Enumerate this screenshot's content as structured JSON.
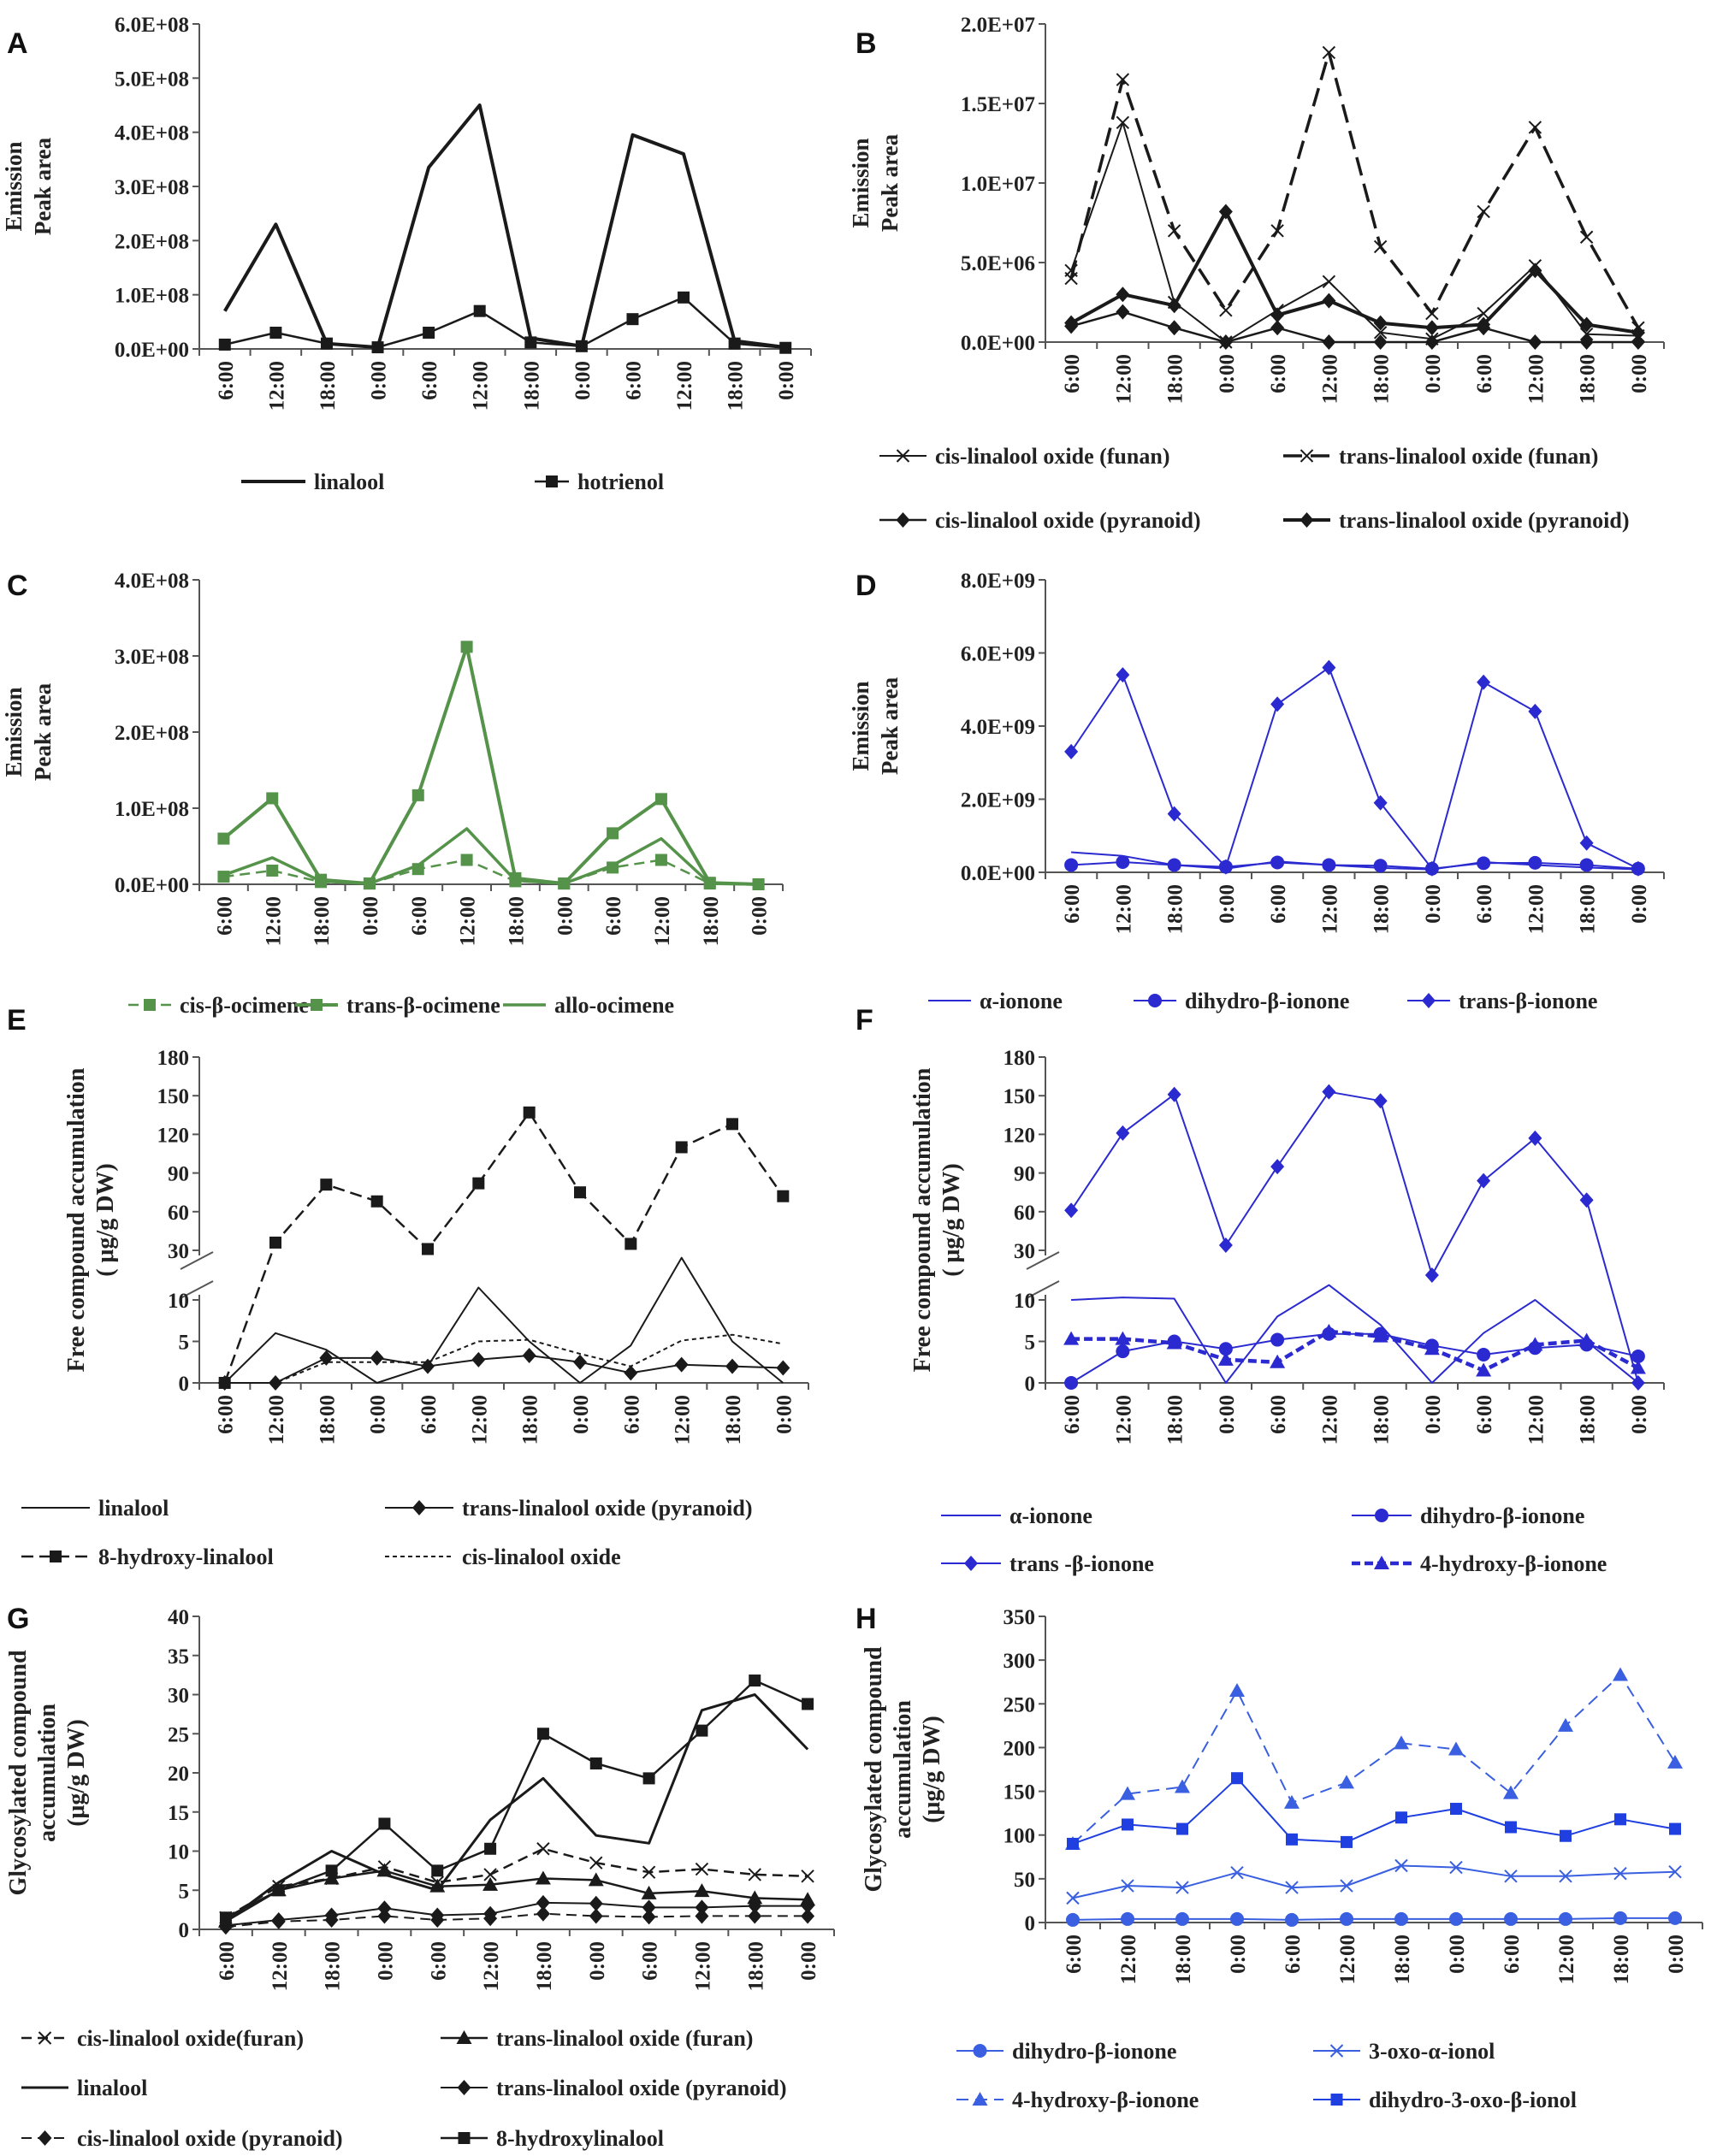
{
  "panels": {
    "A": {
      "label": "A",
      "ylabel": [
        "Emission",
        "Peak area"
      ]
    },
    "B": {
      "label": "B",
      "ylabel": [
        "Emission",
        "Peak area"
      ]
    },
    "C": {
      "label": "C",
      "ylabel": [
        "Emission",
        "Peak area"
      ]
    },
    "D": {
      "label": "D",
      "ylabel": [
        "Emission",
        "Peak area"
      ]
    },
    "E": {
      "label": "E",
      "ylabel": [
        "Free compound accumulation",
        "( μg/g DW)"
      ]
    },
    "F": {
      "label": "F",
      "ylabel": [
        "Free compound accumulation",
        "( μg/g DW)"
      ]
    },
    "G": {
      "label": "G",
      "ylabel": [
        "Glycosylated compound",
        "accumulation",
        "(μg/g DW)"
      ]
    },
    "H": {
      "label": "H",
      "ylabel": [
        "Glycosylated compound",
        "accumulation",
        "(μg/g DW)"
      ]
    }
  },
  "chart_data": [
    {
      "id": "A",
      "type": "line",
      "categories": [
        "6:00",
        "12:00",
        "18:00",
        "0:00",
        "6:00",
        "12:00",
        "18:00",
        "0:00",
        "6:00",
        "12:00",
        "18:00",
        "0:00"
      ],
      "yticks": [
        "0.0E+00",
        "1.0E+08",
        "2.0E+08",
        "3.0E+08",
        "4.0E+08",
        "5.0E+08",
        "6.0E+08"
      ],
      "ylim": [
        0,
        600000000
      ],
      "series": [
        {
          "name": "linalool",
          "color": "#1a1a1a",
          "values": [
            70000000,
            230000000,
            10000000,
            3000000,
            335000000,
            450000000,
            20000000,
            5000000,
            395000000,
            360000000,
            15000000,
            3000000
          ]
        },
        {
          "name": "hotrienol",
          "color": "#1a1a1a",
          "values": [
            8000000,
            30000000,
            10000000,
            3000000,
            30000000,
            70000000,
            12000000,
            5000000,
            55000000,
            95000000,
            10000000,
            2000000
          ]
        }
      ]
    },
    {
      "id": "B",
      "type": "line",
      "categories": [
        "6:00",
        "12:00",
        "18:00",
        "0:00",
        "6:00",
        "12:00",
        "18:00",
        "0:00",
        "6:00",
        "12:00",
        "18:00",
        "0:00"
      ],
      "yticks": [
        "0.0E+00",
        "5.0E+06",
        "1.0E+07",
        "1.5E+07",
        "2.0E+07"
      ],
      "ylim": [
        0,
        20000000
      ],
      "series": [
        {
          "name": "cis-linalool oxide (funan)",
          "color": "#1a1a1a",
          "values": [
            4500000,
            13800000,
            2500000,
            0,
            2000000,
            3800000,
            600000,
            200000,
            1800000,
            4800000,
            500000,
            400000
          ]
        },
        {
          "name": "trans-linalool oxide (funan)",
          "color": "#1a1a1a",
          "values": [
            4000000,
            16500000,
            7000000,
            2000000,
            7000000,
            18200000,
            6000000,
            1800000,
            8200000,
            13500000,
            6600000,
            900000
          ]
        },
        {
          "name": "cis-linalool oxide (pyranoid)",
          "color": "#1a1a1a",
          "values": [
            1000000,
            1900000,
            900000,
            0,
            900000,
            0,
            0,
            0,
            900000,
            0,
            0,
            0
          ]
        },
        {
          "name": "trans-linalool oxide (pyranoid)",
          "color": "#1a1a1a",
          "values": [
            1200000,
            3000000,
            2300000,
            8200000,
            1700000,
            2600000,
            1200000,
            900000,
            1100000,
            4500000,
            1100000,
            600000
          ]
        }
      ]
    },
    {
      "id": "C",
      "type": "line",
      "categories": [
        "6:00",
        "12:00",
        "18:00",
        "0:00",
        "6:00",
        "12:00",
        "18:00",
        "0:00",
        "6:00",
        "12:00",
        "18:00",
        "0:00"
      ],
      "yticks": [
        "0.0E+00",
        "1.0E+08",
        "2.0E+08",
        "3.0E+08",
        "4.0E+08"
      ],
      "ylim": [
        0,
        400000000
      ],
      "series": [
        {
          "name": "cis-β-ocimene",
          "color": "#55924a",
          "values": [
            10000000,
            18000000,
            3000000,
            1000000,
            20000000,
            32000000,
            4000000,
            1000000,
            22000000,
            32000000,
            1000000,
            0
          ]
        },
        {
          "name": "trans-β-ocimene",
          "color": "#55924a",
          "values": [
            60000000,
            113000000,
            6000000,
            1000000,
            117000000,
            312000000,
            8000000,
            1000000,
            67000000,
            112000000,
            2000000,
            0
          ]
        },
        {
          "name": "allo-ocimene",
          "color": "#55924a",
          "values": [
            12000000,
            35000000,
            4000000,
            1000000,
            25000000,
            73000000,
            5000000,
            1000000,
            25000000,
            60000000,
            1000000,
            0
          ]
        }
      ]
    },
    {
      "id": "D",
      "type": "line",
      "categories": [
        "6:00",
        "12:00",
        "18:00",
        "0:00",
        "6:00",
        "12:00",
        "18:00",
        "0:00",
        "6:00",
        "12:00",
        "18:00",
        "0:00"
      ],
      "yticks": [
        "0.0E+00",
        "2.0E+09",
        "4.0E+09",
        "6.0E+09",
        "8.0E+09"
      ],
      "ylim": [
        0,
        8000000000
      ],
      "series": [
        {
          "name": "α-ionone",
          "color": "#2a2ad0",
          "values": [
            550000000,
            450000000,
            200000000,
            100000000,
            300000000,
            200000000,
            120000000,
            80000000,
            280000000,
            200000000,
            130000000,
            80000000
          ]
        },
        {
          "name": "dihydro-β-ionone",
          "color": "#2a2ad0",
          "values": [
            200000000,
            280000000,
            200000000,
            150000000,
            270000000,
            200000000,
            180000000,
            100000000,
            250000000,
            260000000,
            200000000,
            100000000
          ]
        },
        {
          "name": "trans-β-ionone",
          "color": "#2a2ad0",
          "values": [
            3300000000,
            5400000000,
            1600000000,
            150000000,
            4600000000,
            5600000000,
            1900000000,
            100000000,
            5200000000,
            4400000000,
            800000000,
            100000000
          ]
        }
      ]
    },
    {
      "id": "E",
      "type": "line",
      "categories": [
        "6:00",
        "12:00",
        "18:00",
        "0:00",
        "6:00",
        "12:00",
        "18:00",
        "0:00",
        "6:00",
        "12:00",
        "18:00",
        "0:00"
      ],
      "yticks_lower": [
        "0",
        "5",
        "10"
      ],
      "yticks_upper": [
        "30",
        "60",
        "90",
        "120",
        "150",
        "180"
      ],
      "series": [
        {
          "name": "linalool",
          "color": "#1a1a1a",
          "values": [
            0,
            6,
            4,
            0,
            2,
            15,
            5,
            0,
            4.5,
            27,
            5,
            0
          ]
        },
        {
          "name": "trans-linalool oxide (pyranoid)",
          "color": "#1a1a1a",
          "values": [
            0,
            0,
            3,
            3,
            2,
            2.8,
            3.3,
            2.5,
            1.2,
            2.2,
            2,
            1.8
          ]
        },
        {
          "name": "8-hydroxy-linalool",
          "color": "#1a1a1a",
          "values": [
            0,
            36,
            81,
            68,
            31,
            82,
            137,
            75,
            35,
            110,
            128,
            72
          ]
        },
        {
          "name": "cis-linalool oxide",
          "color": "#1a1a1a",
          "values": [
            0,
            0,
            2.5,
            2.5,
            2.5,
            5,
            5.2,
            3.5,
            2,
            5.1,
            5.8,
            4.7
          ]
        }
      ]
    },
    {
      "id": "F",
      "type": "line",
      "categories": [
        "6:00",
        "12:00",
        "18:00",
        "0:00",
        "6:00",
        "12:00",
        "18:00",
        "0:00",
        "6:00",
        "12:00",
        "18:00",
        "0:00"
      ],
      "yticks_lower": [
        "0",
        "5",
        "10"
      ],
      "yticks_upper": [
        "30",
        "60",
        "90",
        "120",
        "150",
        "180"
      ],
      "series": [
        {
          "name": "α-ionone",
          "color": "#2a2ad0",
          "values": [
            10,
            11,
            10.5,
            0,
            8,
            16,
            7,
            0,
            6,
            10,
            5,
            0
          ]
        },
        {
          "name": "dihydro-β-ionone",
          "color": "#2a2ad0",
          "values": [
            0,
            3.8,
            5,
            4.1,
            5.2,
            5.9,
            5.9,
            4.5,
            3.4,
            4.2,
            4.6,
            3.2
          ]
        },
        {
          "name": "trans -β-ionone",
          "color": "#2a2ad0",
          "values": [
            61,
            121,
            151,
            34,
            95,
            153,
            146,
            20,
            84,
            117,
            69,
            0
          ]
        },
        {
          "name": "4-hydroxy-β-ionone",
          "color": "#2a2ad0",
          "values": [
            5.3,
            5.3,
            4.8,
            2.8,
            2.5,
            6.2,
            5.6,
            4.1,
            1.5,
            4.6,
            5.1,
            1.8
          ]
        }
      ]
    },
    {
      "id": "G",
      "type": "line",
      "categories": [
        "6:00",
        "12:00",
        "18:00",
        "0:00",
        "6:00",
        "12:00",
        "18:00",
        "0:00",
        "6:00",
        "12:00",
        "18:00",
        "0:00"
      ],
      "yticks": [
        "0",
        "5",
        "10",
        "15",
        "20",
        "25",
        "30",
        "35",
        "40"
      ],
      "ylim": [
        0,
        40
      ],
      "series": [
        {
          "name": "cis-linalool oxide(furan)",
          "color": "#1a1a1a",
          "values": [
            1.5,
            5.5,
            6.5,
            8,
            6,
            7,
            10.3,
            8.5,
            7.3,
            7.7,
            7,
            6.8
          ]
        },
        {
          "name": "trans-linalool oxide (furan)",
          "color": "#1a1a1a",
          "values": [
            1,
            5,
            6.5,
            7.5,
            5.5,
            5.7,
            6.5,
            6.3,
            4.6,
            4.9,
            4,
            3.8
          ]
        },
        {
          "name": "linalool",
          "color": "#1a1a1a",
          "values": [
            1,
            6,
            10,
            7,
            5,
            14,
            19.3,
            12,
            11,
            28,
            30,
            23
          ]
        },
        {
          "name": "trans-linalool oxide (pyranoid)",
          "color": "#1a1a1a",
          "values": [
            0.5,
            1.2,
            1.8,
            2.7,
            1.8,
            2,
            3.4,
            3.3,
            2.8,
            2.8,
            3,
            3
          ]
        },
        {
          "name": "cis-linalool oxide (pyranoid)",
          "color": "#1a1a1a",
          "values": [
            0.3,
            1,
            1.2,
            1.7,
            1.2,
            1.4,
            2,
            1.7,
            1.6,
            1.7,
            1.7,
            1.7
          ]
        },
        {
          "name": "8-hydroxylinalool",
          "color": "#1a1a1a",
          "values": [
            1.5,
            5,
            7.5,
            13.5,
            7.5,
            10.3,
            25,
            21.2,
            19.3,
            25.4,
            31.8,
            28.8
          ]
        }
      ]
    },
    {
      "id": "H",
      "type": "line",
      "categories": [
        "6:00",
        "12:00",
        "18:00",
        "0:00",
        "6:00",
        "12:00",
        "18:00",
        "0:00",
        "6:00",
        "12:00",
        "18:00",
        "0:00"
      ],
      "yticks": [
        "0",
        "50",
        "100",
        "150",
        "200",
        "250",
        "300",
        "350"
      ],
      "ylim": [
        0,
        350
      ],
      "series": [
        {
          "name": "dihydro-β-ionone",
          "color": "#3a5fe0",
          "values": [
            3,
            4,
            4,
            4,
            3,
            4,
            4,
            4,
            4,
            4,
            5,
            5
          ]
        },
        {
          "name": "3-oxo-α-ionol",
          "color": "#3a5fe0",
          "values": [
            28,
            42,
            40,
            57,
            40,
            42,
            65,
            63,
            53,
            53,
            56,
            58
          ]
        },
        {
          "name": "4-hydroxy-β-ionone",
          "color": "#3a5fe0",
          "values": [
            90,
            147,
            155,
            265,
            137,
            160,
            205,
            198,
            148,
            225,
            283,
            183
          ]
        },
        {
          "name": "dihydro-3-oxo-β-ionol",
          "color": "#1f3fe0",
          "values": [
            90,
            112,
            107,
            165,
            95,
            92,
            120,
            130,
            109,
            99,
            118,
            107
          ]
        }
      ]
    }
  ]
}
